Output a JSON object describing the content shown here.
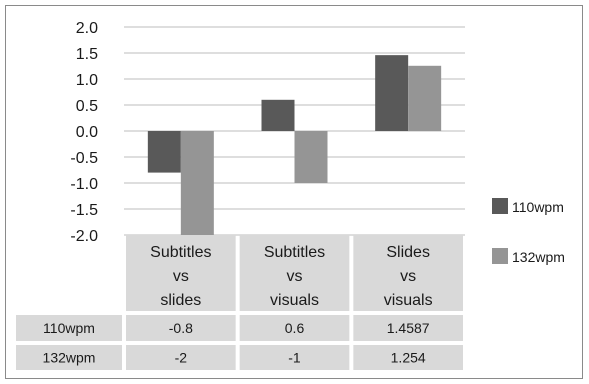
{
  "chart_data": {
    "type": "bar",
    "categories": [
      [
        "Subtitles",
        "vs",
        "slides"
      ],
      [
        "Subtitles",
        "vs",
        "visuals"
      ],
      [
        "Slides",
        "vs",
        "visuals"
      ]
    ],
    "series": [
      {
        "name": "110wpm",
        "values": [
          -0.8,
          0.6,
          1.4587
        ],
        "labels": [
          "-0.8",
          "0.6",
          "1.4587"
        ],
        "color": "#595959"
      },
      {
        "name": "132wpm",
        "values": [
          -2,
          -1,
          1.254
        ],
        "labels": [
          "-2",
          "-1",
          "1.254"
        ],
        "color": "#959595"
      }
    ],
    "yticks": [
      "2.0",
      "1.5",
      "1.0",
      "0.5",
      "0.0",
      "-0.5",
      "-1.0",
      "-1.5",
      "-2.0"
    ],
    "ylim": [
      -2.0,
      2.0
    ],
    "grid": true,
    "legend_position": "right",
    "data_table": true,
    "title": "",
    "xlabel": "",
    "ylabel": ""
  }
}
